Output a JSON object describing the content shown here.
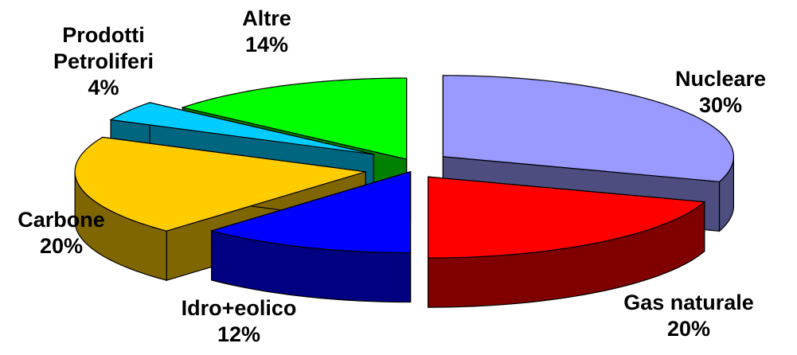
{
  "chart_data": {
    "type": "pie",
    "style": "3d-exploded",
    "title": "",
    "slices": [
      {
        "label": "Nucleare",
        "value": 30,
        "percent_label": "30%",
        "color": "#9999ff",
        "side_color": "#4d4d80"
      },
      {
        "label": "Gas naturale",
        "value": 20,
        "percent_label": "20%",
        "color": "#ff0000",
        "side_color": "#800000"
      },
      {
        "label": "Idro+eolico",
        "value": 12,
        "percent_label": "12%",
        "color": "#0000ff",
        "side_color": "#000080"
      },
      {
        "label": "Carbone",
        "value": 20,
        "percent_label": "20%",
        "color": "#ffcc00",
        "side_color": "#806600"
      },
      {
        "label": "Prodotti Petroliferi",
        "label_lines": [
          "Prodotti",
          "Petroliferi"
        ],
        "value": 4,
        "percent_label": "4%",
        "color": "#00ccff",
        "side_color": "#006680"
      },
      {
        "label": "Altre",
        "value": 14,
        "percent_label": "14%",
        "color": "#00ff00",
        "side_color": "#008000"
      }
    ]
  }
}
